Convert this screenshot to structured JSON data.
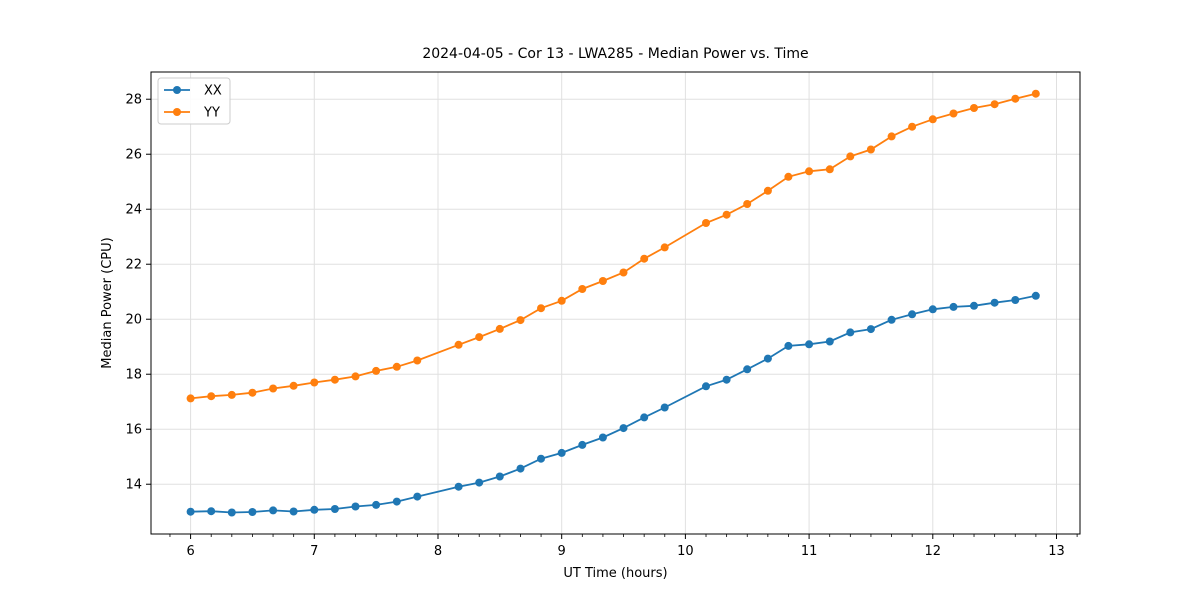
{
  "chart_data": {
    "type": "line",
    "title": "2024-04-05 - Cor 13 - LWA285 - Median Power vs. Time",
    "xlabel": "UT Time (hours)",
    "ylabel": "Median Power (CPU)",
    "xlim": [
      5.68,
      13.19
    ],
    "ylim": [
      12.19,
      28.99
    ],
    "xticks": [
      6,
      7,
      8,
      9,
      10,
      11,
      12,
      13
    ],
    "yticks": [
      14,
      16,
      18,
      20,
      22,
      24,
      26,
      28
    ],
    "x_minor_divisions": 6,
    "grid": true,
    "legend_position": "upper-left",
    "colors": {
      "xx": "#1f77b4",
      "yy": "#ff7f0e",
      "grid": "#e0e0e0",
      "spine": "#000000",
      "legend_border": "#cccccc"
    },
    "x": [
      6.0,
      6.167,
      6.333,
      6.5,
      6.667,
      6.833,
      7.0,
      7.167,
      7.333,
      7.5,
      7.667,
      7.833,
      8.167,
      8.333,
      8.5,
      8.667,
      8.833,
      9.0,
      9.167,
      9.333,
      9.5,
      9.667,
      9.833,
      10.167,
      10.333,
      10.5,
      10.667,
      10.833,
      11.0,
      11.167,
      11.333,
      11.5,
      11.667,
      11.833,
      12.0,
      12.167,
      12.333,
      12.5,
      12.667,
      12.833
    ],
    "series": [
      {
        "name": "XX",
        "color_key": "xx",
        "values": [
          13.0,
          13.02,
          12.97,
          12.99,
          13.05,
          13.01,
          13.07,
          13.1,
          13.19,
          13.25,
          13.37,
          13.55,
          13.91,
          14.06,
          14.28,
          14.57,
          14.93,
          15.14,
          15.43,
          15.7,
          16.04,
          16.43,
          16.79,
          17.56,
          17.8,
          18.18,
          18.57,
          19.03,
          19.09,
          19.19,
          19.52,
          19.64,
          19.98,
          20.18,
          20.36,
          20.45,
          20.49,
          20.6,
          20.7,
          20.85
        ]
      },
      {
        "name": "YY",
        "color_key": "yy",
        "values": [
          17.12,
          17.2,
          17.25,
          17.33,
          17.48,
          17.58,
          17.7,
          17.8,
          17.92,
          18.12,
          18.27,
          18.5,
          19.07,
          19.35,
          19.65,
          19.97,
          20.4,
          20.67,
          21.1,
          21.39,
          21.7,
          22.2,
          22.61,
          23.5,
          23.8,
          24.19,
          24.67,
          25.18,
          25.38,
          25.45,
          25.92,
          26.17,
          26.65,
          27.0,
          27.27,
          27.48,
          27.68,
          27.82,
          28.02,
          28.2
        ]
      }
    ]
  }
}
